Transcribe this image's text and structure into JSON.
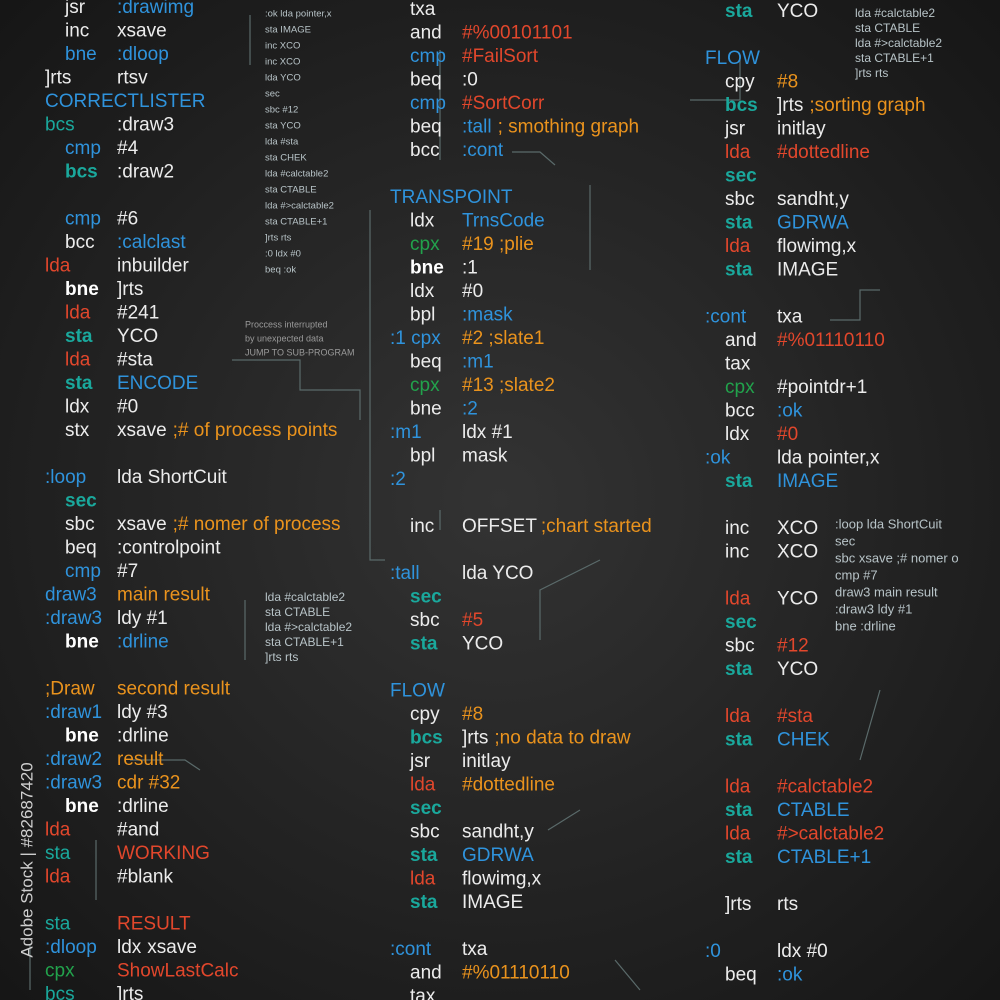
{
  "watermark": "Adobe Stock | #82687420",
  "columns": [
    {
      "lines": [
        {
          "op": [
            "jsr",
            "w"
          ],
          "arg": [
            ":drawimg",
            "b"
          ]
        },
        {
          "op": [
            "inc",
            "w"
          ],
          "arg": [
            "xsave",
            "w"
          ]
        },
        {
          "op": [
            "bne",
            "b"
          ],
          "arg": [
            ":dloop",
            "b"
          ]
        },
        {
          "label": [
            "]rts",
            "w"
          ],
          "arg": [
            "rtsv",
            "w"
          ]
        },
        {
          "label": [
            "CORRECTLISTER",
            "b"
          ]
        },
        {
          "label": [
            "bcs",
            "t"
          ],
          "arg": [
            ":draw3",
            "w"
          ]
        },
        {
          "op": [
            "cmp",
            "b"
          ],
          "arg": [
            "#4",
            "w"
          ]
        },
        {
          "op": [
            "bcs",
            "t"
          ],
          "arg": [
            ":draw2",
            "w"
          ]
        },
        null,
        {
          "op": [
            "cmp",
            "b"
          ],
          "arg": [
            "#6",
            "w"
          ]
        },
        {
          "op": [
            "bcc",
            "w"
          ],
          "arg": [
            ":calclast",
            "b"
          ]
        },
        {
          "label": [
            "lda",
            "r"
          ],
          "arg": [
            "inbuilder",
            "w"
          ]
        },
        {
          "op": [
            "bne",
            "W"
          ],
          "arg": [
            "]rts",
            "w"
          ]
        },
        {
          "op": [
            "lda",
            "r"
          ],
          "arg": [
            "#241",
            "w"
          ]
        },
        {
          "op": [
            "sta",
            "t"
          ],
          "arg": [
            "YCO",
            "w"
          ]
        },
        {
          "op": [
            "lda",
            "r"
          ],
          "arg": [
            "#sta",
            "w"
          ]
        },
        {
          "op": [
            "sta",
            "t"
          ],
          "arg": [
            "ENCODE",
            "b"
          ]
        },
        {
          "op": [
            "ldx",
            "w"
          ],
          "arg": [
            "#0",
            "w"
          ]
        },
        {
          "op": [
            "stx",
            "w"
          ],
          "arg": [
            "xsave",
            "w"
          ],
          "cmt": [
            ";# of process points",
            "o"
          ]
        },
        null,
        {
          "label": [
            ":loop",
            "b"
          ],
          "arg": [
            "lda ShortCuit",
            "w"
          ]
        },
        {
          "op": [
            "sec",
            "t"
          ]
        },
        {
          "op": [
            "sbc",
            "w"
          ],
          "arg": [
            "xsave",
            "w"
          ],
          "cmt": [
            ";# nomer of process",
            "o"
          ]
        },
        {
          "op": [
            "beq",
            "w"
          ],
          "arg": [
            ":controlpoint",
            "w"
          ]
        },
        {
          "op": [
            "cmp",
            "b"
          ],
          "arg": [
            "#7",
            "w"
          ]
        },
        {
          "label": [
            "draw3",
            "b"
          ],
          "arg": [
            "main result",
            "o"
          ]
        },
        {
          "label": [
            ":draw3",
            "b"
          ],
          "arg": [
            "ldy #1",
            "w"
          ]
        },
        {
          "op": [
            "bne",
            "W"
          ],
          "arg": [
            ":drline",
            "b"
          ]
        },
        null,
        {
          "label": [
            ";Draw",
            "o"
          ],
          "arg": [
            "second result",
            "o"
          ]
        },
        {
          "label": [
            ":draw1",
            "b"
          ],
          "arg": [
            "ldy #3",
            "w"
          ]
        },
        {
          "op": [
            "bne",
            "W"
          ],
          "arg": [
            ":drline",
            "w"
          ]
        },
        {
          "label": [
            ":draw2",
            "b"
          ],
          "arg": [
            "result",
            "o"
          ]
        },
        {
          "label": [
            ":draw3",
            "b"
          ],
          "arg": [
            "cdr #32",
            "o"
          ]
        },
        {
          "op": [
            "bne",
            "W"
          ],
          "arg": [
            ":drline",
            "w"
          ]
        },
        {
          "label": [
            "lda",
            "r"
          ],
          "arg": [
            "#and",
            "w"
          ]
        },
        {
          "label": [
            "sta",
            "t"
          ],
          "arg": [
            "WORKING",
            "r"
          ]
        },
        {
          "label": [
            "lda",
            "r"
          ],
          "arg": [
            "#blank",
            "w"
          ]
        },
        null,
        {
          "label": [
            "sta",
            "t"
          ],
          "arg": [
            "RESULT",
            "r"
          ]
        },
        {
          "label": [
            ":dloop",
            "b"
          ],
          "arg": [
            "ldx",
            "w"
          ],
          "cmt": [
            "xsave",
            "w"
          ]
        },
        {
          "label": [
            "cpx",
            "g"
          ],
          "arg": [
            "ShowLastCalc",
            "r"
          ]
        },
        {
          "label": [
            "bcs",
            "t"
          ],
          "arg": [
            "]rts",
            "w"
          ]
        }
      ]
    },
    {
      "lines": [
        {
          "op": [
            "txa",
            "w"
          ]
        },
        {
          "op": [
            "and",
            "w"
          ],
          "arg": [
            "#%00101101",
            "r"
          ]
        },
        {
          "op": [
            "cmp",
            "b"
          ],
          "arg": [
            "#FailSort",
            "r"
          ]
        },
        {
          "op": [
            "beq",
            "w"
          ],
          "arg": [
            ":0",
            "w"
          ]
        },
        {
          "op": [
            "cmp",
            "b"
          ],
          "arg": [
            "#SortCorr",
            "r"
          ]
        },
        {
          "op": [
            "beq",
            "w"
          ],
          "arg": [
            ":tall",
            "b"
          ],
          "cmt": [
            "; smothing graph",
            "o"
          ]
        },
        {
          "op": [
            "bcc",
            "w"
          ],
          "arg": [
            ":cont",
            "b"
          ]
        },
        null,
        {
          "label": [
            "TRANSPOINT",
            "b"
          ]
        },
        {
          "op": [
            "ldx",
            "w"
          ],
          "arg": [
            "TrnsCode",
            "b"
          ]
        },
        {
          "op": [
            "cpx",
            "g"
          ],
          "arg": [
            "#19 ;plie",
            "o"
          ]
        },
        {
          "op": [
            "bne",
            "W"
          ],
          "arg": [
            ":1",
            "w"
          ]
        },
        {
          "op": [
            "ldx",
            "w"
          ],
          "arg": [
            "#0",
            "w"
          ]
        },
        {
          "op": [
            "bpl",
            "w"
          ],
          "arg": [
            ":mask",
            "b"
          ]
        },
        {
          "label": [
            ":1 cpx",
            "b"
          ],
          "arg": [
            "#2 ;slate1",
            "o"
          ]
        },
        {
          "op": [
            "beq",
            "w"
          ],
          "arg": [
            ":m1",
            "b"
          ]
        },
        {
          "op": [
            "cpx",
            "g"
          ],
          "arg": [
            "#13 ;slate2",
            "o"
          ]
        },
        {
          "op": [
            "bne",
            "w"
          ],
          "arg": [
            ":2",
            "b"
          ]
        },
        {
          "label": [
            ":m1",
            "b"
          ],
          "arg": [
            "ldx #1",
            "w"
          ]
        },
        {
          "op": [
            "bpl",
            "w"
          ],
          "arg": [
            "mask",
            "w"
          ]
        },
        {
          "label": [
            ":2",
            "b"
          ]
        },
        null,
        {
          "op": [
            "inc",
            "w"
          ],
          "arg": [
            "OFFSET",
            "w"
          ],
          "cmt": [
            ";chart started",
            "o"
          ]
        },
        null,
        {
          "label": [
            ":tall",
            "b"
          ],
          "arg": [
            "lda YCO",
            "w"
          ]
        },
        {
          "op": [
            "sec",
            "t"
          ]
        },
        {
          "op": [
            "sbc",
            "w"
          ],
          "arg": [
            "#5",
            "r"
          ]
        },
        {
          "op": [
            "sta",
            "t"
          ],
          "arg": [
            "YCO",
            "w"
          ]
        },
        null,
        {
          "label": [
            "FLOW",
            "b"
          ]
        },
        {
          "op": [
            "cpy",
            "w"
          ],
          "arg": [
            "#8",
            "o"
          ]
        },
        {
          "op": [
            "bcs",
            "t"
          ],
          "arg": [
            "]rts",
            "w"
          ],
          "cmt": [
            ";no data to draw",
            "o"
          ]
        },
        {
          "op": [
            "jsr",
            "w"
          ],
          "arg": [
            "initlay",
            "w"
          ]
        },
        {
          "op": [
            "lda",
            "r"
          ],
          "arg": [
            "#dottedline",
            "o"
          ]
        },
        {
          "op": [
            "sec",
            "t"
          ]
        },
        {
          "op": [
            "sbc",
            "w"
          ],
          "arg": [
            "sandht,y",
            "w"
          ]
        },
        {
          "op": [
            "sta",
            "t"
          ],
          "arg": [
            "GDRWA",
            "b"
          ]
        },
        {
          "op": [
            "lda",
            "r"
          ],
          "arg": [
            "flowimg,x",
            "w"
          ]
        },
        {
          "op": [
            "sta",
            "t"
          ],
          "arg": [
            "IMAGE",
            "w"
          ]
        },
        null,
        {
          "label": [
            ":cont",
            "b"
          ],
          "arg": [
            "txa",
            "w"
          ]
        },
        {
          "op": [
            "and",
            "w"
          ],
          "arg": [
            "#%01110110",
            "o"
          ]
        },
        {
          "op": [
            "tax",
            "w"
          ]
        }
      ]
    },
    {
      "lines": [
        {
          "op": [
            "sta",
            "t"
          ],
          "arg": [
            "YCO",
            "w"
          ]
        },
        null,
        {
          "label": [
            "FLOW",
            "b"
          ]
        },
        {
          "op": [
            "cpy",
            "w"
          ],
          "arg": [
            "#8",
            "o"
          ]
        },
        {
          "op": [
            "bcs",
            "t"
          ],
          "arg": [
            "]rts",
            "w"
          ],
          "cmt": [
            ";sorting graph",
            "o"
          ]
        },
        {
          "op": [
            "jsr",
            "w"
          ],
          "arg": [
            "initlay",
            "w"
          ]
        },
        {
          "op": [
            "lda",
            "r"
          ],
          "arg": [
            "#dottedline",
            "r"
          ]
        },
        {
          "op": [
            "sec",
            "t"
          ]
        },
        {
          "op": [
            "sbc",
            "w"
          ],
          "arg": [
            "sandht,y",
            "w"
          ]
        },
        {
          "op": [
            "sta",
            "t"
          ],
          "arg": [
            "GDRWA",
            "b"
          ]
        },
        {
          "op": [
            "lda",
            "r"
          ],
          "arg": [
            "flowimg,x",
            "w"
          ]
        },
        {
          "op": [
            "sta",
            "t"
          ],
          "arg": [
            "IMAGE",
            "w"
          ]
        },
        null,
        {
          "label": [
            ":cont",
            "b"
          ],
          "arg": [
            "txa",
            "w"
          ]
        },
        {
          "op": [
            "and",
            "w"
          ],
          "arg": [
            "#%01110110",
            "r"
          ]
        },
        {
          "op": [
            "tax",
            "w"
          ]
        },
        {
          "op": [
            "cpx",
            "g"
          ],
          "arg": [
            "#pointdr+1",
            "w"
          ]
        },
        {
          "op": [
            "bcc",
            "w"
          ],
          "arg": [
            ":ok",
            "b"
          ]
        },
        {
          "op": [
            "ldx",
            "w"
          ],
          "arg": [
            "#0",
            "r"
          ]
        },
        {
          "label": [
            ":ok",
            "b"
          ],
          "arg": [
            "lda pointer,x",
            "w"
          ]
        },
        {
          "op": [
            "sta",
            "t"
          ],
          "arg": [
            "IMAGE",
            "b"
          ]
        },
        null,
        {
          "op": [
            "inc",
            "w"
          ],
          "arg": [
            "XCO",
            "w"
          ]
        },
        {
          "op": [
            "inc",
            "w"
          ],
          "arg": [
            "XCO",
            "w"
          ]
        },
        null,
        {
          "op": [
            "lda",
            "r"
          ],
          "arg": [
            "YCO",
            "w"
          ]
        },
        {
          "op": [
            "sec",
            "t"
          ]
        },
        {
          "op": [
            "sbc",
            "w"
          ],
          "arg": [
            "#12",
            "r"
          ]
        },
        {
          "op": [
            "sta",
            "t"
          ],
          "arg": [
            "YCO",
            "w"
          ]
        },
        null,
        {
          "op": [
            "lda",
            "r"
          ],
          "arg": [
            "#sta",
            "r"
          ]
        },
        {
          "op": [
            "sta",
            "t"
          ],
          "arg": [
            "CHEK",
            "b"
          ]
        },
        null,
        {
          "op": [
            "lda",
            "r"
          ],
          "arg": [
            "#calctable2",
            "r"
          ]
        },
        {
          "op": [
            "sta",
            "t"
          ],
          "arg": [
            "CTABLE",
            "b"
          ]
        },
        {
          "op": [
            "lda",
            "r"
          ],
          "arg": [
            "#>calctable2",
            "r"
          ]
        },
        {
          "op": [
            "sta",
            "t"
          ],
          "arg": [
            "CTABLE+1",
            "b"
          ]
        },
        null,
        {
          "op": [
            "]rts",
            "w"
          ],
          "arg": [
            "rts",
            "w"
          ]
        },
        null,
        {
          "label": [
            ":0",
            "b"
          ],
          "arg": [
            "ldx #0",
            "w"
          ]
        },
        {
          "op": [
            "beq",
            "w"
          ],
          "arg": [
            ":ok",
            "b"
          ]
        }
      ]
    }
  ],
  "panels": [
    {
      "lines": [
        ":ok  lda pointer,x",
        "sta  IMAGE",
        "inc  XCO",
        "inc  XCO",
        "lda  YCO",
        "sec",
        "sbc  #12",
        "sta  YCO",
        "lda  #sta",
        "sta  CHEK",
        "lda  #calctable2",
        "sta  CTABLE",
        "lda  #>calctable2",
        "sta  CTABLE+1",
        "]rts  rts",
        ":0  ldx #0",
        "beq  :ok"
      ]
    },
    {
      "lines": [
        "Proccess interrupted",
        "by unexpected data",
        "JUMP TO SUB-PROGRAM"
      ]
    },
    {
      "lines": [
        ":loop   lda ShortCuit",
        "sec",
        "sbc   xsave ;# nomer o",
        "cmp   #7",
        "draw3   main result",
        ":draw3   ldy #1",
        "bne   :drline"
      ]
    },
    {
      "lines": [
        "lda   #calctable2",
        "sta   CTABLE",
        "lda   #>calctable2",
        "sta   CTABLE+1",
        "]rts   rts"
      ]
    },
    {
      "lines": [
        "lda   #calctable2",
        "sta   CTABLE",
        "lda   #>calctable2",
        "sta   CTABLE+1",
        "]rts   rts"
      ]
    }
  ]
}
